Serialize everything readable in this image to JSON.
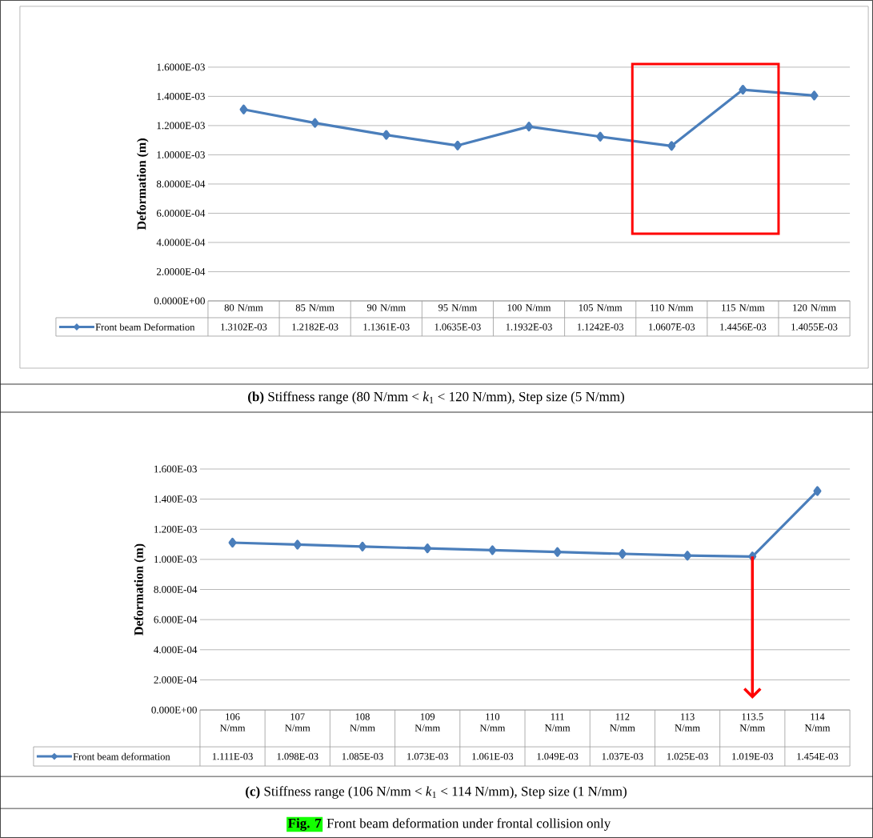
{
  "chart_data": [
    {
      "type": "line",
      "annotations": [
        "**(b)** Stiffness range (80 N/mm < *k*$_{1}$ < 120 N/mm), Step size (5 N/mm)"
      ],
      "ylabel": "Deformation (m)",
      "categories": [
        "80 N/mm",
        "85 N/mm",
        "90 N/mm",
        "95 N/mm",
        "100 N/mm",
        "105 N/mm",
        "110 N/mm",
        "115 N/mm",
        "120 N/mm"
      ],
      "series": [
        {
          "name": "Front beam Deformation",
          "color": "#4a7ebb",
          "values": [
            0.0013102,
            0.0012182,
            0.0011361,
            0.0010635,
            0.0011932,
            0.0011242,
            0.0010607,
            0.0014456,
            0.0014055
          ],
          "value_labels": [
            "1.3102E-03",
            "1.2182E-03",
            "1.1361E-03",
            "1.0635E-03",
            "1.1932E-03",
            "1.1242E-03",
            "1.0607E-03",
            "1.4456E-03",
            "1.4055E-03"
          ]
        }
      ],
      "ylim": [
        0,
        0.0016
      ],
      "yticks": [
        {
          "value": 0,
          "label": "0.0000E+00"
        },
        {
          "value": 0.0002,
          "label": "2.0000E-04"
        },
        {
          "value": 0.0004,
          "label": "4.0000E-04"
        },
        {
          "value": 0.0006,
          "label": "6.0000E-04"
        },
        {
          "value": 0.0008,
          "label": "8.0000E-04"
        },
        {
          "value": 0.001,
          "label": "1.0000E-03"
        },
        {
          "value": 0.0012,
          "label": "1.2000E-03"
        },
        {
          "value": 0.0014,
          "label": "1.4000E-03"
        },
        {
          "value": 0.0016,
          "label": "1.6000E-03"
        }
      ],
      "grid": "y",
      "marker": "diamond",
      "legend": "bottom"
    },
    {
      "type": "line",
      "annotations": [
        "**(c)** Stiffness range (106 N/mm < *k*$_{1}$ < 114 N/mm), Step size (1 N/mm)",
        "**Fig. 7**",
        "Front beam deformation under frontal collision only"
      ],
      "ylabel": "Deformation (m)",
      "categories": [
        "106 N/mm",
        "107 N/mm",
        "108 N/mm",
        "109 N/mm",
        "110 N/mm",
        "111 N/mm",
        "112 N/mm",
        "113 N/mm",
        "113.5 N/mm",
        "114 N/mm"
      ],
      "series": [
        {
          "name": "Front beam deformation",
          "color": "#4a7ebb",
          "values": [
            0.001111,
            0.001098,
            0.001085,
            0.001073,
            0.001061,
            0.001049,
            0.001037,
            0.001025,
            0.001019,
            0.001454
          ],
          "value_labels": [
            "1.111E-03",
            "1.098E-03",
            "1.085E-03",
            "1.073E-03",
            "1.061E-03",
            "1.049E-03",
            "1.037E-03",
            "1.025E-03",
            "1.019E-03",
            "1.454E-03"
          ]
        }
      ],
      "ylim": [
        0,
        0.0016
      ],
      "yticks": [
        {
          "value": 0,
          "label": "0.000E+00"
        },
        {
          "value": 0.0002,
          "label": "2.000E-04"
        },
        {
          "value": 0.0004,
          "label": "4.000E-04"
        },
        {
          "value": 0.0006,
          "label": "6.000E-04"
        },
        {
          "value": 0.0008,
          "label": "8.000E-04"
        },
        {
          "value": 0.001,
          "label": "1.000E-03"
        },
        {
          "value": 0.0012,
          "label": "1.200E-03"
        },
        {
          "value": 0.0014,
          "label": "1.400E-03"
        },
        {
          "value": 0.0016,
          "label": "1.600E-03"
        }
      ],
      "grid": "y",
      "marker": "diamond",
      "legend": "bottom"
    }
  ]
}
